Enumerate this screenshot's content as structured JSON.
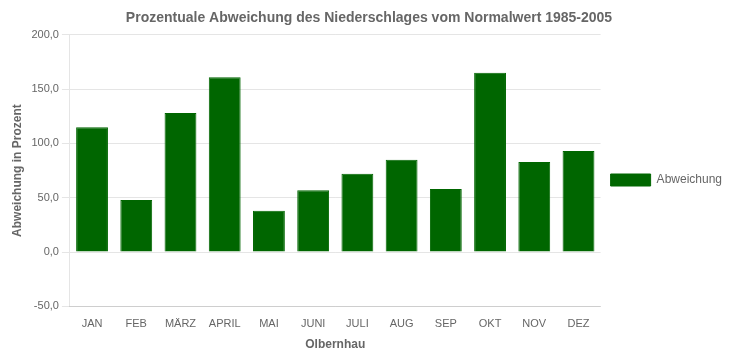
{
  "chart_data": {
    "type": "bar",
    "title": "Prozentuale Abweichung des Niederschlages vom Normalwert 1985-2005",
    "xlabel": "Olbernhau",
    "ylabel": "Abweichung in Prozent",
    "categories": [
      "JAN",
      "FEB",
      "MÄRZ",
      "APRIL",
      "MAI",
      "JUNI",
      "JULI",
      "AUG",
      "SEP",
      "OKT",
      "NOV",
      "DEZ"
    ],
    "series": [
      {
        "name": "Abweichung",
        "color": "#006600",
        "values": [
          115.0,
          48.0,
          128.0,
          161.0,
          38.0,
          57.0,
          72.0,
          85.0,
          58.0,
          165.0,
          83.0,
          93.0
        ]
      }
    ],
    "ylim": [
      -50,
      200
    ],
    "yticks": [
      {
        "value": -50,
        "label": "-50,0"
      },
      {
        "value": 0,
        "label": "0,0"
      },
      {
        "value": 50,
        "label": "50,0"
      },
      {
        "value": 100,
        "label": "100,0"
      },
      {
        "value": 150,
        "label": "150,0"
      },
      {
        "value": 200,
        "label": "200,0"
      }
    ],
    "grid": true,
    "legend": "right"
  }
}
